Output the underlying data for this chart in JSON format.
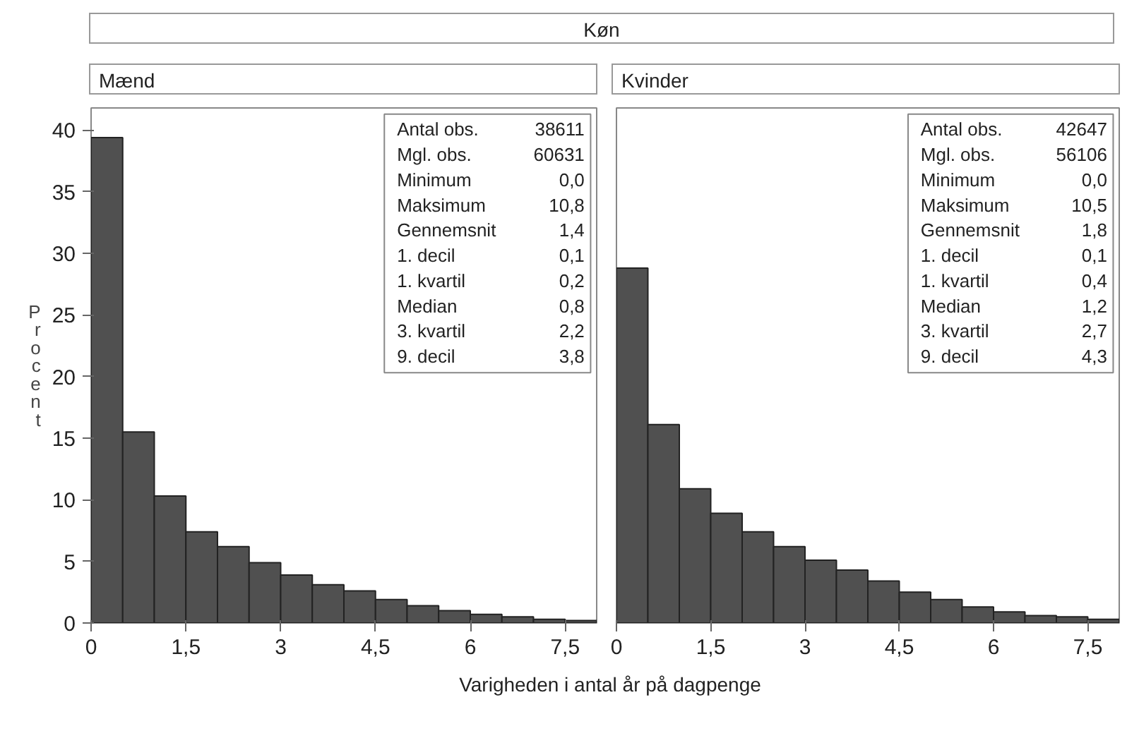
{
  "chart_data": [
    {
      "type": "histogram",
      "title": "Mænd",
      "subtitle": "Køn",
      "xlabel": "Varigheden i antal år på dagpenge",
      "ylabel": "Procent",
      "color": "#505050",
      "bins": [
        0,
        0.5,
        1,
        1.5,
        2,
        2.5,
        3,
        3.5,
        4,
        4.5,
        5,
        5.5,
        6,
        6.5,
        7,
        7.5,
        8
      ],
      "values": [
        39.4,
        15.5,
        10.3,
        7.4,
        6.2,
        4.9,
        3.9,
        3.1,
        2.6,
        1.9,
        1.4,
        1.0,
        0.7,
        0.5,
        0.3,
        0.2
      ],
      "xlim": [
        0,
        8
      ],
      "ylim": [
        0,
        41.8
      ],
      "xticks": [
        0,
        {
          "value": 1.5,
          "label": "1,5"
        },
        3,
        {
          "value": 4.5,
          "label": "4,5"
        },
        6,
        {
          "value": 7.5,
          "label": "7,5"
        }
      ],
      "yticks": [
        0,
        5,
        10,
        15,
        20,
        25,
        30,
        35,
        40
      ],
      "grid": false,
      "annotations": [
        "Antal obs. 38611",
        "Mgl. obs. 60631",
        "Minimum 0,0",
        "Maksimum 10,8",
        "Gennemsnit 1,4",
        "1. decil 0,1",
        "1. kvartil 0,2",
        "Median 0,8",
        "3. kvartil 2,2",
        "9. decil 3,8"
      ]
    },
    {
      "type": "histogram",
      "title": "Kvinder",
      "color": "#505050",
      "bins": [
        0,
        0.5,
        1,
        1.5,
        2,
        2.5,
        3,
        3.5,
        4,
        4.5,
        5,
        5.5,
        6,
        6.5,
        7,
        7.5,
        8
      ],
      "values": [
        28.8,
        16.1,
        10.9,
        8.9,
        7.4,
        6.2,
        5.1,
        4.3,
        3.4,
        2.5,
        1.9,
        1.3,
        0.9,
        0.6,
        0.5,
        0.3
      ],
      "xlim": [
        0,
        8
      ],
      "ylim": [
        0,
        41.8
      ],
      "xticks": [
        0,
        {
          "value": 1.5,
          "label": "1,5"
        },
        3,
        {
          "value": 4.5,
          "label": "4,5"
        },
        6,
        {
          "value": 7.5,
          "label": "7,5"
        }
      ],
      "yticks": [
        0,
        5,
        10,
        15,
        20,
        25,
        30,
        35,
        40
      ],
      "grid": false,
      "tick_labels": "x",
      "annotations": [
        "Antal obs. 42647",
        "Mgl. obs. 56106",
        "Minimum 0,0",
        "Maksimum 10,5",
        "Gennemsnit 1,8",
        "1. decil 0,1",
        "1. kvartil 0,4",
        "Median 1,2",
        "3. kvartil 2,7",
        "9. decil 4,3"
      ]
    }
  ]
}
